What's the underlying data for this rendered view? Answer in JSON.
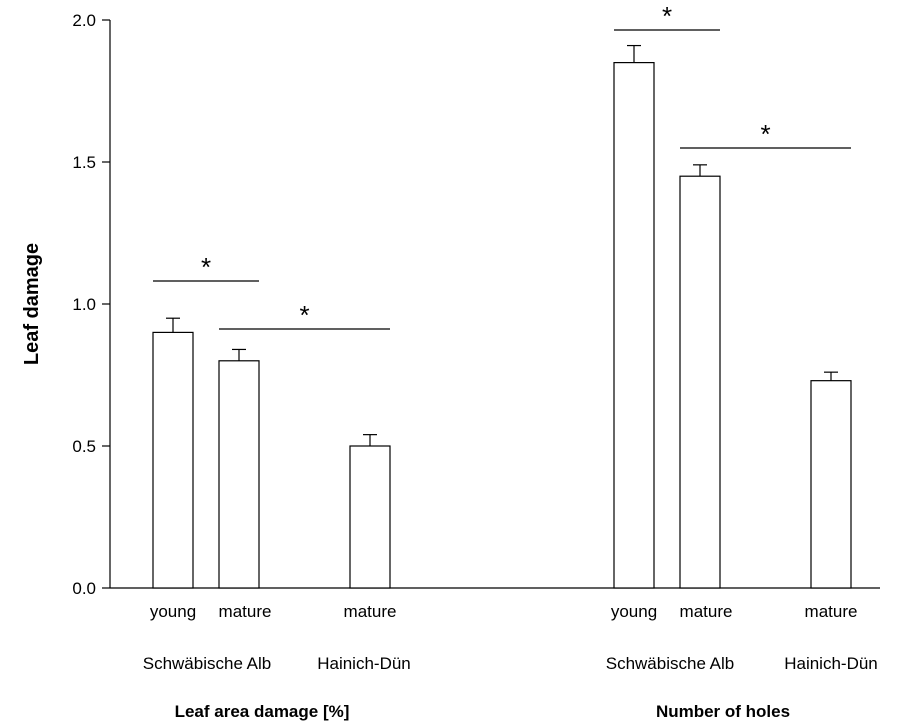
{
  "chart_data": {
    "type": "bar",
    "ylabel": "Leaf damage",
    "ylim": [
      0,
      2.0
    ],
    "yticks": [
      "0.0",
      "0.5",
      "1.0",
      "1.5",
      "2.0"
    ],
    "grid": false,
    "groups": [
      {
        "name": "Leaf area damage [%]",
        "bars": [
          {
            "label": "young",
            "site": "Schwäbische Alb",
            "value": 0.9,
            "error": 0.05
          },
          {
            "label": "mature",
            "site": "Schwäbische Alb",
            "value": 0.8,
            "error": 0.04
          },
          {
            "label": "mature",
            "site": "Hainich-Dün",
            "value": 0.5,
            "error": 0.04
          }
        ],
        "site_labels": [
          "Schwäbische Alb",
          "Hainich-Dün"
        ],
        "significance": [
          {
            "from": 0,
            "to": 1,
            "mark": "*"
          },
          {
            "from": 1,
            "to": 2,
            "mark": "*"
          }
        ]
      },
      {
        "name": "Number of holes",
        "bars": [
          {
            "label": "young",
            "site": "Schwäbische Alb",
            "value": 1.85,
            "error": 0.06
          },
          {
            "label": "mature",
            "site": "Schwäbische Alb",
            "value": 1.45,
            "error": 0.04
          },
          {
            "label": "mature",
            "site": "Hainich-Dün",
            "value": 0.73,
            "error": 0.03
          }
        ],
        "site_labels": [
          "Schwäbische Alb",
          "Hainich-Dün"
        ],
        "significance": [
          {
            "from": 0,
            "to": 1,
            "mark": "*"
          },
          {
            "from": 1,
            "to": 2,
            "mark": "*"
          }
        ]
      }
    ]
  }
}
